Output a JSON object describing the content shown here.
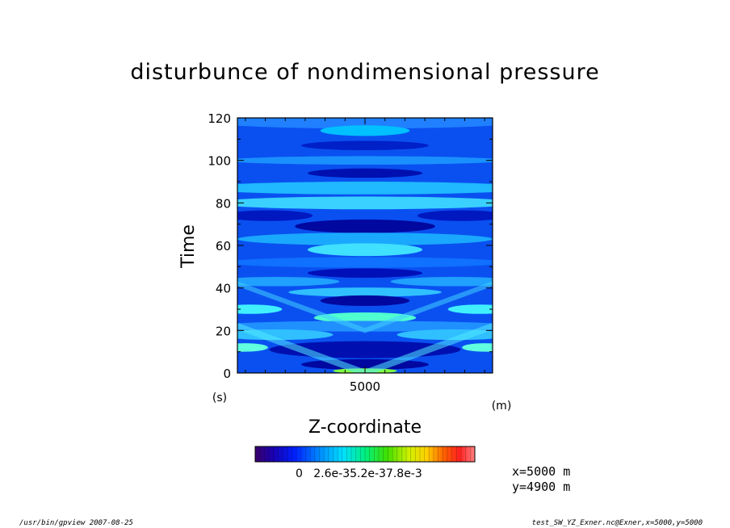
{
  "chart_data": {
    "type": "heatmap",
    "title": "disturbunce of nondimensional pressure",
    "xlabel": "Z-coordinate",
    "ylabel": "Time",
    "x_unit": "(m)",
    "y_unit": "(s)",
    "x_ticks": [
      "5000"
    ],
    "y_ticks": [
      "0",
      "20",
      "40",
      "60",
      "80",
      "100",
      "120"
    ],
    "xlim": [
      1800,
      8200
    ],
    "ylim": [
      0,
      120
    ],
    "colorbar_labels": [
      "0",
      "2.6e-3",
      "5.2e-3",
      "7.8e-3"
    ],
    "colorbar_label_text": "0   2.6e-35.2e-37.8e-3"
  },
  "info": {
    "x_line": "x=5000  m",
    "y_line": "y=4900  m"
  },
  "footer": {
    "left": "/usr/bin/gpview   2007-08-25",
    "right": "test_SW_YZ_Exner.nc@Exner,x=5000,y=5000"
  }
}
